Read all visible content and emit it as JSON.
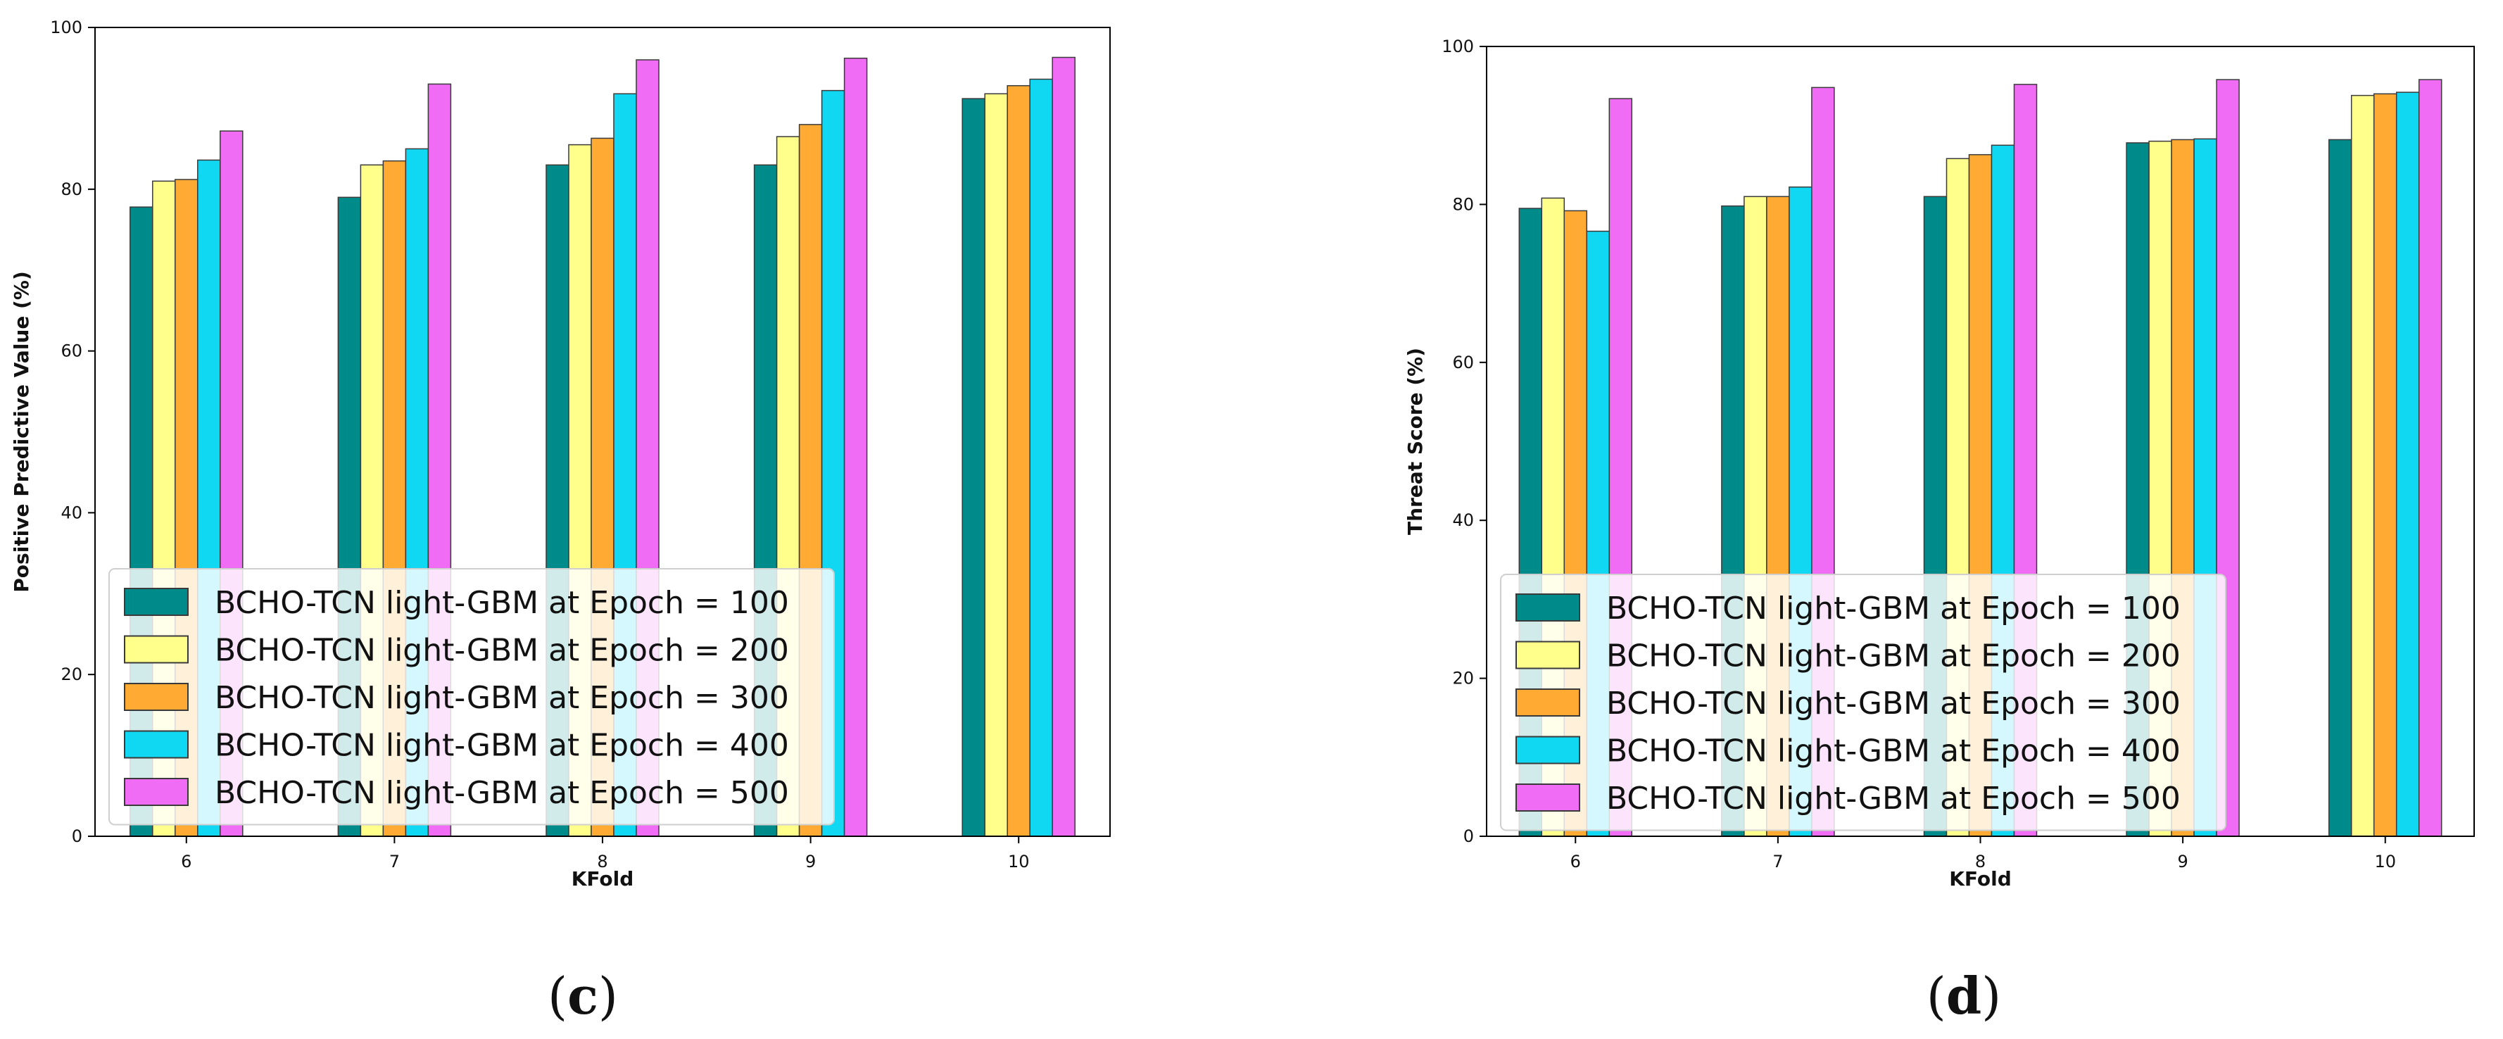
{
  "colors": {
    "series": [
      "#008b8b",
      "#ffff8c",
      "#ffaa33",
      "#11d8f2",
      "#f06cf5"
    ],
    "bar_edge": "#3a3a3a",
    "axis": "#000000"
  },
  "chart_data": [
    {
      "type": "bar",
      "panel_caption": "c",
      "title": "",
      "xlabel": "KFold",
      "ylabel": "Positive Predictive Value (%)",
      "ylim": [
        0,
        100
      ],
      "yticks": [
        "0",
        "20",
        "40",
        "60",
        "80",
        "100"
      ],
      "categories": [
        "6",
        "7",
        "8",
        "9",
        "10"
      ],
      "legend_position": "lower-left",
      "series": [
        {
          "name": "BCHO-TCN light-GBM at Epoch = 100",
          "values": [
            77.8,
            79.0,
            83.0,
            83.0,
            91.2
          ]
        },
        {
          "name": "BCHO-TCN light-GBM at Epoch = 200",
          "values": [
            81.0,
            83.0,
            85.5,
            86.5,
            91.8
          ]
        },
        {
          "name": "BCHO-TCN light-GBM at Epoch = 300",
          "values": [
            81.2,
            83.5,
            86.3,
            88.0,
            92.8
          ]
        },
        {
          "name": "BCHO-TCN light-GBM at Epoch = 400",
          "values": [
            83.6,
            85.0,
            91.8,
            92.2,
            93.6
          ]
        },
        {
          "name": "BCHO-TCN light-GBM at Epoch = 500",
          "values": [
            87.2,
            93.0,
            96.0,
            96.2,
            96.3
          ]
        }
      ]
    },
    {
      "type": "bar",
      "panel_caption": "d",
      "title": "",
      "xlabel": "KFold",
      "ylabel": "Threat Score (%)",
      "ylim": [
        0,
        100
      ],
      "yticks": [
        "0",
        "20",
        "40",
        "60",
        "80",
        "100"
      ],
      "categories": [
        "6",
        "7",
        "8",
        "9",
        "10"
      ],
      "legend_position": "lower-left",
      "series": [
        {
          "name": "BCHO-TCN light-GBM at Epoch = 100",
          "values": [
            79.5,
            79.8,
            81.0,
            87.8,
            88.2
          ]
        },
        {
          "name": "BCHO-TCN light-GBM at Epoch = 200",
          "values": [
            80.8,
            81.0,
            85.8,
            88.0,
            93.8
          ]
        },
        {
          "name": "BCHO-TCN light-GBM at Epoch = 300",
          "values": [
            79.2,
            81.0,
            86.3,
            88.2,
            94.0
          ]
        },
        {
          "name": "BCHO-TCN light-GBM at Epoch = 400",
          "values": [
            76.6,
            82.2,
            87.5,
            88.3,
            94.2
          ]
        },
        {
          "name": "BCHO-TCN light-GBM at Epoch = 500",
          "values": [
            93.4,
            94.8,
            95.2,
            95.8,
            95.8
          ]
        }
      ]
    }
  ]
}
